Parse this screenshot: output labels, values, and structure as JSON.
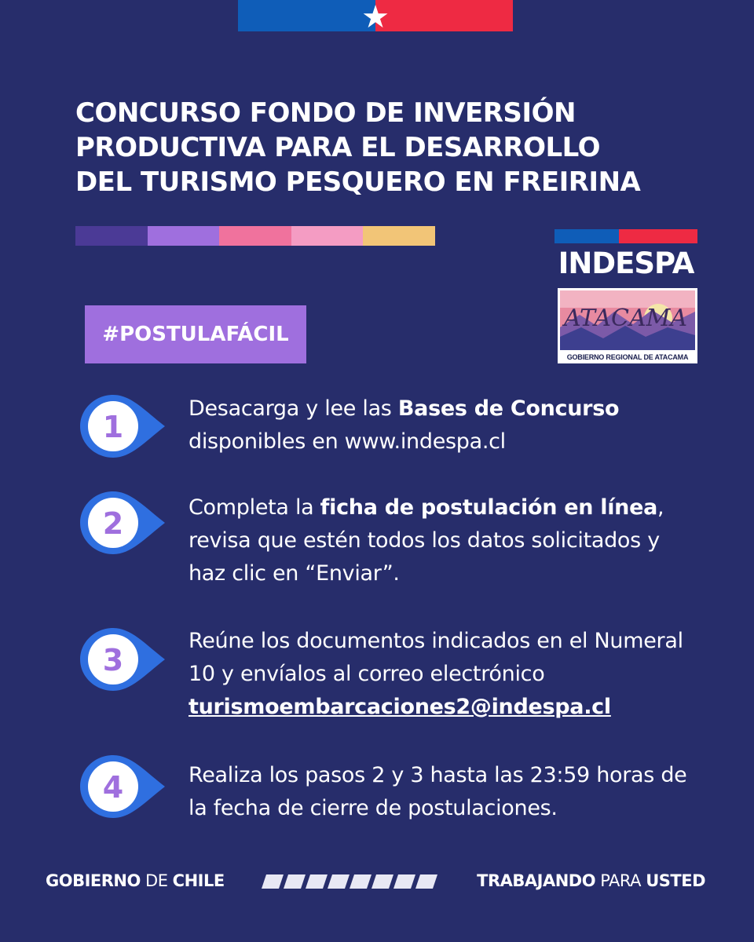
{
  "title": {
    "line1": "CONCURSO FONDO DE INVERSIÓN",
    "line2": "PRODUCTIVA PARA EL DESARROLLO",
    "line3": "DEL TURISMO PESQUERO EN FREIRINA"
  },
  "stripe_colors": [
    "#4b3a96",
    "#9f6fde",
    "#f0729d",
    "#f49cc3",
    "#f2c577"
  ],
  "hashtag": "#POSTULAFÁCIL",
  "logos": {
    "indespa": "INDESPA",
    "atacama_word": "ATACAMA",
    "atacama_caption": "GOBIERNO REGIONAL DE ATACAMA"
  },
  "steps": [
    {
      "number": "1",
      "text_a": "Desacarga y lee las ",
      "bold": "Bases de Concurso",
      "text_b": " disponibles en www.indespa.cl"
    },
    {
      "number": "2",
      "text_a": "Completa la ",
      "bold": "ficha de postulación en línea",
      "text_b": ", revisa que estén todos los datos solicitados y haz clic en “Enviar”."
    },
    {
      "number": "3",
      "text_a": "Reúne los documentos indicados en el Numeral 10 y envíalos al correo electrónico ",
      "link": "turismoembarcaciones2@indespa.cl"
    },
    {
      "number": "4",
      "text_a": "Realiza los pasos 2 y 3 hasta las 23:59 horas de la fecha de cierre de postulaciones."
    }
  ],
  "footer": {
    "left_bold1": "GOBIERNO",
    "left_light": " DE ",
    "left_bold2": "CHILE",
    "right_bold1": "TRABAJANDO",
    "right_light": " PARA ",
    "right_bold2": "USTED"
  },
  "colors": {
    "background": "#272d6b",
    "flag_blue": "#0f5db8",
    "flag_red": "#ee2a43",
    "hashtag_bg": "#9f6fde",
    "step_number": "#9f6fde",
    "pin_blue": "#2f6fe0"
  },
  "icons": {
    "flag_star": "★"
  }
}
